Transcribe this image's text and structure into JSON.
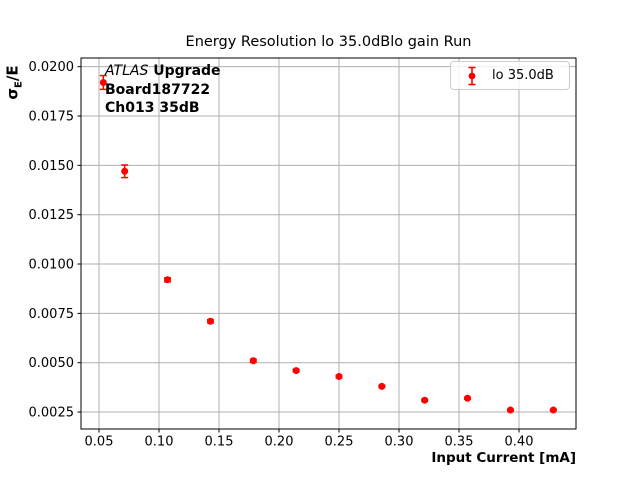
{
  "title": "Energy Resolution lo 35.0dBlo gain Run",
  "annotation": {
    "line1_italic": "ATLAS",
    "line1_bold": " Upgrade",
    "line2": "Board187722",
    "line3": "Ch013 35dB"
  },
  "legend": {
    "label": "lo 35.0dB"
  },
  "axes": {
    "xlabel": "Input Current [mA]",
    "ylabel_symbol": "σ",
    "ylabel_subscript": "E",
    "ylabel_suffix": "/E"
  },
  "chart_data": {
    "type": "scatter",
    "title": "Energy Resolution lo 35.0dBlo gain Run",
    "xlabel": "Input Current [mA]",
    "ylabel": "sigma_E/E",
    "grid": true,
    "legend_position": "upper right",
    "xlim": [
      0.035,
      0.4475
    ],
    "ylim": [
      0.00164,
      0.02044
    ],
    "xticks": [
      0.05,
      0.1,
      0.15,
      0.2,
      0.25,
      0.3,
      0.35,
      0.4
    ],
    "xtick_labels": [
      "0.05",
      "0.10",
      "0.15",
      "0.20",
      "0.25",
      "0.30",
      "0.35",
      "0.40"
    ],
    "yticks": [
      0.0025,
      0.005,
      0.0075,
      0.01,
      0.0125,
      0.015,
      0.0175,
      0.02
    ],
    "ytick_labels": [
      "0.0025",
      "0.0050",
      "0.0075",
      "0.0100",
      "0.0125",
      "0.0150",
      "0.0175",
      "0.0200"
    ],
    "colors": {
      "marker": "#ff0000",
      "grid": "#b0b0b0",
      "spine": "#000000",
      "legend_border": "#cccccc"
    },
    "series": [
      {
        "name": "lo 35.0dB",
        "color": "#ff0000",
        "x": [
          0.0536,
          0.0714,
          0.1071,
          0.1429,
          0.1786,
          0.2143,
          0.25,
          0.2857,
          0.3214,
          0.3571,
          0.3929,
          0.4286
        ],
        "y": [
          0.0192,
          0.0147,
          0.0092,
          0.0071,
          0.0051,
          0.0046,
          0.0043,
          0.0038,
          0.0031,
          0.0032,
          0.0026,
          0.0026
        ],
        "yerr": [
          0.00035,
          0.00032,
          0.0001,
          8e-05,
          7e-05,
          6e-05,
          6e-05,
          5e-05,
          5e-05,
          5e-05,
          4e-05,
          4e-05
        ]
      }
    ]
  }
}
